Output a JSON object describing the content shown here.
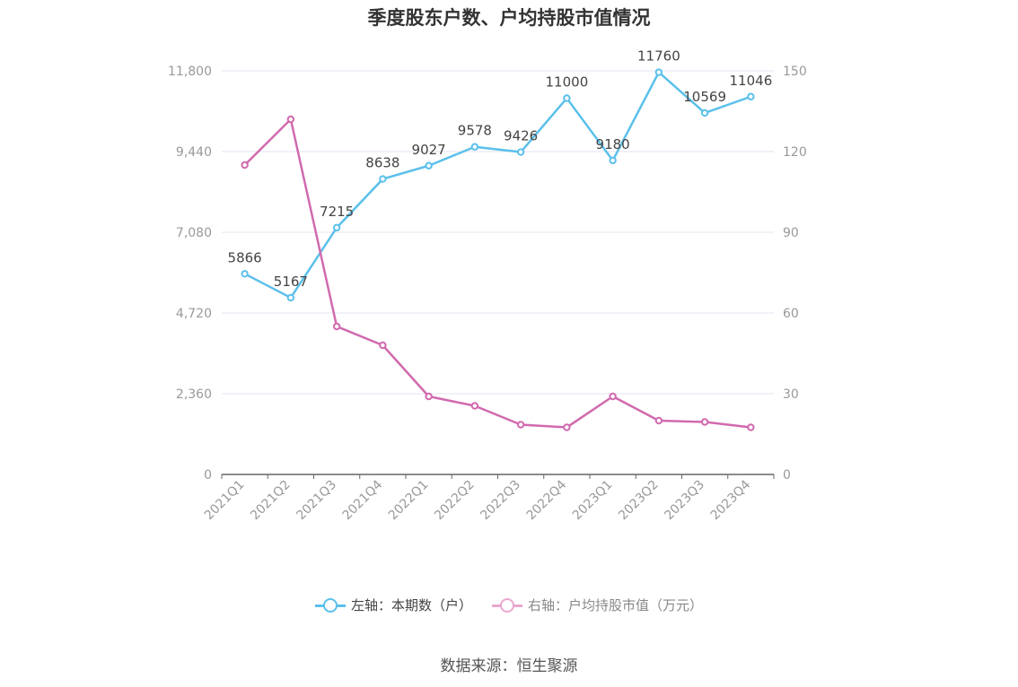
{
  "chart_data": {
    "type": "line",
    "title": "季度股东户数、户均持股市值情况",
    "categories": [
      "2021Q1",
      "2021Q2",
      "2021Q3",
      "2021Q4",
      "2022Q1",
      "2022Q2",
      "2022Q3",
      "2022Q4",
      "2023Q1",
      "2023Q2",
      "2023Q3",
      "2023Q4"
    ],
    "series": [
      {
        "name": "左轴：本期数（户）",
        "axis": "left",
        "color": "#5bc0eb",
        "values": [
          5866,
          5167,
          7215,
          8638,
          9027,
          9578,
          9426,
          11000,
          9180,
          11760,
          10569,
          11046
        ],
        "labels": [
          "5866",
          "5167",
          "7215",
          "8638",
          "9027",
          "9578",
          "9426",
          "11000",
          "9180",
          "11760",
          "10569",
          "11046"
        ]
      },
      {
        "name": "右轴：户均持股市值（万元）",
        "axis": "right",
        "color": "#d16aae",
        "values": [
          115,
          132,
          55,
          48,
          29,
          25.5,
          18.5,
          17.5,
          29,
          20,
          19.5,
          17.5
        ]
      }
    ],
    "left_axis": {
      "min": 0,
      "max": 11800,
      "ticks": [
        0,
        2360,
        4720,
        7080,
        9440,
        11800
      ],
      "tick_labels": [
        "0",
        "2,360",
        "4,720",
        "7,080",
        "9,440",
        "11,800"
      ]
    },
    "right_axis": {
      "min": 0,
      "max": 150,
      "ticks": [
        0,
        30,
        60,
        90,
        120,
        150
      ],
      "tick_labels": [
        "0",
        "30",
        "60",
        "90",
        "120",
        "150"
      ]
    },
    "grid": true,
    "legend_position": "bottom"
  },
  "source": "数据来源：恒生聚源"
}
